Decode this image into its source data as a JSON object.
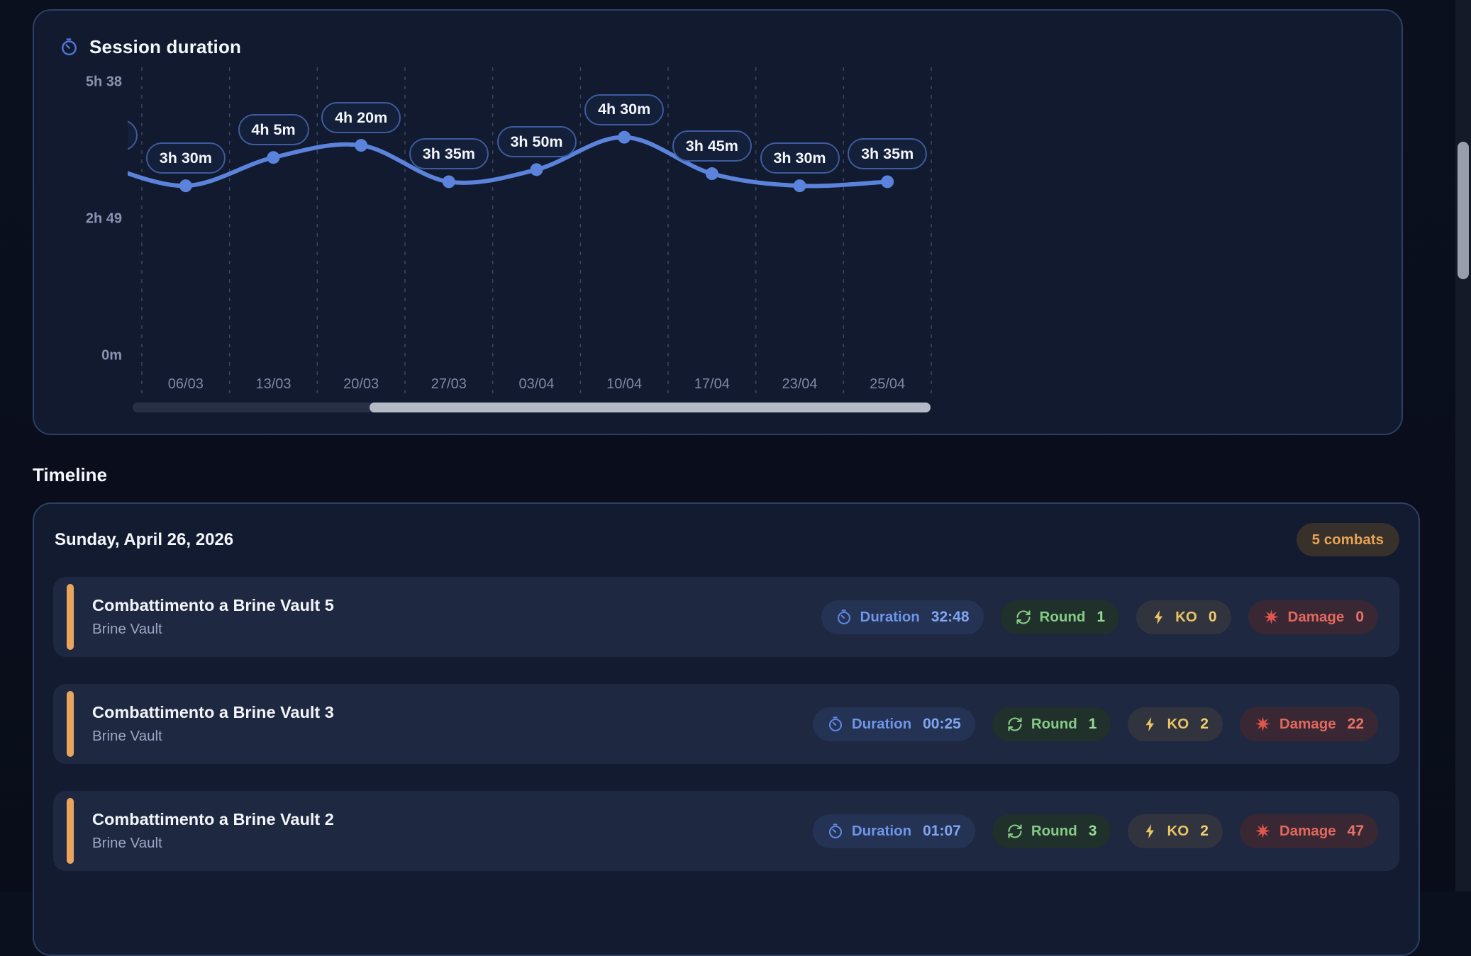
{
  "colors": {
    "accent_blue": "#5b83dc",
    "accent_orange": "#e9a55e",
    "combats_badge_text": "#e5a455",
    "duration_text": "#6e96e8",
    "round_text": "#86cc86",
    "ko_text": "#e9c463",
    "damage_text": "#e2685c",
    "card_bg": "#121b30",
    "page_bg": "#0a0e1b"
  },
  "chart_card": {
    "title": "Session duration",
    "icon": "timer-icon"
  },
  "chart_data": {
    "type": "line",
    "title": "Session duration",
    "x": [
      "06/03",
      "13/03",
      "20/03",
      "27/03",
      "03/04",
      "10/04",
      "17/04",
      "23/04",
      "25/04"
    ],
    "series": [
      {
        "name": "Session duration",
        "values_minutes": [
          210,
          245,
          260,
          215,
          230,
          270,
          225,
          210,
          215
        ],
        "point_labels": [
          "3h 30m",
          "4h 5m",
          "4h 20m",
          "3h 35m",
          "3h 50m",
          "4h 30m",
          "3h 45m",
          "3h 30m",
          "3h 35m"
        ]
      }
    ],
    "y_tick_labels": [
      "5h 38",
      "2h 49",
      "0m"
    ],
    "ylim_minutes": [
      0,
      338
    ],
    "grid": "vertical-dashed",
    "legend": "none",
    "left_edge": {
      "clipped_pill_visible": true,
      "entry_value_minutes": 238
    },
    "h_scrollbar": {
      "thumb_start_frac": 0.297,
      "thumb_end_frac": 1.0
    }
  },
  "timeline": {
    "heading": "Timeline",
    "day_group": {
      "date": "Sunday, April 26, 2026",
      "combats_badge": "5 combats",
      "stat_labels": {
        "duration": "Duration",
        "round": "Round",
        "ko": "KO",
        "damage": "Damage"
      },
      "rows": [
        {
          "title": "Combattimento a Brine Vault 5",
          "subtitle": "Brine Vault",
          "duration": "32:48",
          "round": "1",
          "ko": "0",
          "damage": "0"
        },
        {
          "title": "Combattimento a Brine Vault 3",
          "subtitle": "Brine Vault",
          "duration": "00:25",
          "round": "1",
          "ko": "2",
          "damage": "22"
        },
        {
          "title": "Combattimento a Brine Vault 2",
          "subtitle": "Brine Vault",
          "duration": "01:07",
          "round": "3",
          "ko": "2",
          "damage": "47"
        }
      ]
    }
  }
}
